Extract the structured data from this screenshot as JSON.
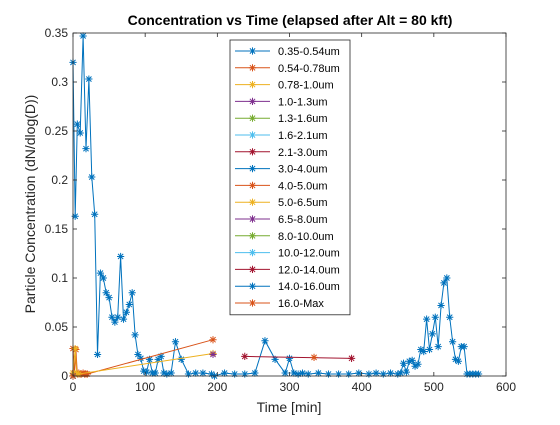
{
  "chart_data": {
    "type": "line",
    "title": "Concentration vs Time (elapsed after Alt = 80 kft)",
    "xlabel": "Time [min]",
    "ylabel": "Particle Concentration (dN/dlog(D))",
    "xlim": [
      0,
      600
    ],
    "ylim": [
      0,
      0.35
    ],
    "xticks": [
      "0",
      "100",
      "200",
      "300",
      "400",
      "500",
      "600"
    ],
    "yticks": [
      "0",
      "0.05",
      "0.1",
      "0.15",
      "0.2",
      "0.25",
      "0.3",
      "0.35"
    ],
    "grid": false,
    "legend_position": "top-center",
    "series": [
      {
        "name": "0.35-0.54um",
        "color": "#0072BD",
        "x": [
          0,
          3,
          6,
          10,
          14,
          18,
          22,
          26,
          30,
          34,
          38,
          42,
          46,
          50,
          54,
          58,
          62,
          66,
          70,
          74,
          78,
          82,
          86,
          90,
          94,
          98,
          102,
          106,
          110,
          114,
          118,
          122,
          126,
          130,
          136,
          142,
          150,
          160,
          170,
          180,
          192,
          196,
          210,
          224,
          238,
          252,
          266,
          280,
          294,
          300,
          306,
          312,
          318,
          326,
          340,
          354,
          368,
          382,
          396,
          410,
          420,
          430,
          440,
          450,
          454,
          458,
          462,
          466,
          470,
          474,
          478,
          482,
          486,
          490,
          494,
          498,
          502,
          506,
          510,
          514,
          518,
          522,
          526,
          530,
          534,
          538,
          542,
          546,
          550,
          554,
          558,
          562
        ],
        "y": [
          0.32,
          0.163,
          0.257,
          0.248,
          0.347,
          0.232,
          0.303,
          0.203,
          0.165,
          0.022,
          0.105,
          0.1,
          0.085,
          0.08,
          0.06,
          0.055,
          0.06,
          0.122,
          0.058,
          0.065,
          0.073,
          0.085,
          0.042,
          0.022,
          0.018,
          0.005,
          0.004,
          0.017,
          0.003,
          0.003,
          0.017,
          0.02,
          0.003,
          0.002,
          0.003,
          0.035,
          0.017,
          0.002,
          0.003,
          0.003,
          0.002,
          0.0,
          0.003,
          0.002,
          0.002,
          0.003,
          0.036,
          0.017,
          0.003,
          0.018,
          0.003,
          0.002,
          0.003,
          0.002,
          0.003,
          0.002,
          0.002,
          0.002,
          0.003,
          0.002,
          0.003,
          0.002,
          0.003,
          0.002,
          0.003,
          0.013,
          0.004,
          0.015,
          0.016,
          0.01,
          0.012,
          0.027,
          0.025,
          0.058,
          0.027,
          0.043,
          0.06,
          0.03,
          0.072,
          0.095,
          0.1,
          0.06,
          0.035,
          0.017,
          0.015,
          0.03,
          0.03,
          0.002,
          0.002,
          0.002,
          0.002,
          0.002
        ]
      },
      {
        "name": "0.54-0.78um",
        "color": "#D95319",
        "x": [
          0,
          2,
          4,
          6,
          8,
          10,
          12,
          14,
          16,
          18,
          20,
          194
        ],
        "y": [
          0.028,
          0.003,
          0.027,
          0.002,
          0.003,
          0.002,
          0.002,
          0.003,
          0.002,
          0.002,
          0.002,
          0.037
        ]
      },
      {
        "name": "0.78-1.0um",
        "color": "#EDB120",
        "x": [
          0,
          3,
          5,
          8,
          194
        ],
        "y": [
          0.003,
          0.028,
          0.003,
          0.002,
          0.023
        ]
      },
      {
        "name": "1.0-1.3um",
        "color": "#7E2F8E",
        "x": [
          194
        ],
        "y": [
          0.022
        ]
      },
      {
        "name": "1.3-1.6um",
        "color": "#77AC30",
        "x": [
          0
        ],
        "y": [
          0.0
        ]
      },
      {
        "name": "1.6-2.1um",
        "color": "#4DBEEE",
        "x": [
          0
        ],
        "y": [
          0.0
        ]
      },
      {
        "name": "2.1-3.0um",
        "color": "#A2142F",
        "x": [
          238,
          386
        ],
        "y": [
          0.02,
          0.018
        ]
      },
      {
        "name": "3.0-4.0um",
        "color": "#0072BD",
        "x": [
          0
        ],
        "y": [
          0.0
        ]
      },
      {
        "name": "4.0-5.0um",
        "color": "#D95319",
        "x": [
          334
        ],
        "y": [
          0.019
        ]
      },
      {
        "name": "5.0-6.5um",
        "color": "#EDB120",
        "x": [
          0
        ],
        "y": [
          0.0
        ]
      },
      {
        "name": "6.5-8.0um",
        "color": "#7E2F8E",
        "x": [
          0
        ],
        "y": [
          0.0
        ]
      },
      {
        "name": "8.0-10.0um",
        "color": "#77AC30",
        "x": [
          0
        ],
        "y": [
          0.0
        ]
      },
      {
        "name": "10.0-12.0um",
        "color": "#4DBEEE",
        "x": [
          0
        ],
        "y": [
          0.0
        ]
      },
      {
        "name": "12.0-14.0um",
        "color": "#A2142F",
        "x": [
          0
        ],
        "y": [
          0.0
        ]
      },
      {
        "name": "14.0-16.0um",
        "color": "#0072BD",
        "x": [
          0
        ],
        "y": [
          0.0
        ]
      },
      {
        "name": "16.0-Max",
        "color": "#D95319",
        "x": [
          0
        ],
        "y": [
          0.0
        ]
      }
    ]
  }
}
